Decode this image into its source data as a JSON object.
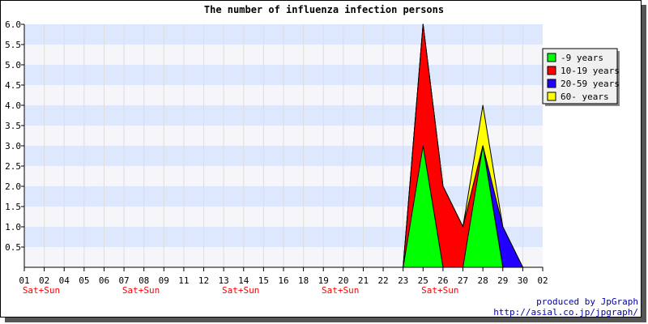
{
  "chart_data": {
    "type": "area",
    "title": "The number of influenza infection persons",
    "xlabel": "",
    "ylabel": "",
    "ylim": [
      0,
      6
    ],
    "y_ticks": [
      "0.5",
      "1.0",
      "1.5",
      "2.0",
      "2.5",
      "3.0",
      "3.5",
      "4.0",
      "4.5",
      "5.0",
      "5.5",
      "6.0"
    ],
    "categories": [
      "01",
      "02",
      "04",
      "05",
      "06",
      "07",
      "08",
      "09",
      "11",
      "12",
      "13",
      "14",
      "15",
      "16",
      "18",
      "19",
      "20",
      "21",
      "22",
      "23",
      "25",
      "26",
      "27",
      "28",
      "29",
      "30",
      "02"
    ],
    "weekend_labels": [
      {
        "category_index": 0,
        "text": "Sat+Sun"
      },
      {
        "category_index": 5,
        "text": "Sat+Sun"
      },
      {
        "category_index": 10,
        "text": "Sat+Sun"
      },
      {
        "category_index": 15,
        "text": "Sat+Sun"
      },
      {
        "category_index": 20,
        "text": "Sat+Sun"
      }
    ],
    "stacked": true,
    "series": [
      {
        "name": "-9 years",
        "color": "#00ff00",
        "values": [
          0,
          0,
          0,
          0,
          0,
          0,
          0,
          0,
          0,
          0,
          0,
          0,
          0,
          0,
          0,
          0,
          0,
          0,
          0,
          0,
          3,
          0,
          0,
          3,
          0,
          0,
          0
        ]
      },
      {
        "name": "10-19 years",
        "color": "#ff0000",
        "values": [
          0,
          0,
          0,
          0,
          0,
          0,
          0,
          0,
          0,
          0,
          0,
          0,
          0,
          0,
          0,
          0,
          0,
          0,
          0,
          0,
          3,
          2,
          1,
          0,
          0,
          0,
          0
        ]
      },
      {
        "name": "20-59 years",
        "color": "#2200ff",
        "values": [
          0,
          0,
          0,
          0,
          0,
          0,
          0,
          0,
          0,
          0,
          0,
          0,
          0,
          0,
          0,
          0,
          0,
          0,
          0,
          0,
          0,
          0,
          0,
          0,
          1,
          0,
          0
        ]
      },
      {
        "name": "60- years",
        "color": "#ffff00",
        "values": [
          0,
          0,
          0,
          0,
          0,
          0,
          0,
          0,
          0,
          0,
          0,
          0,
          0,
          0,
          0,
          0,
          0,
          0,
          0,
          0,
          0,
          0,
          0,
          1,
          0,
          0,
          0
        ]
      }
    ],
    "grid": true,
    "band_colors": [
      "#f5f5fa",
      "#dde8ff"
    ],
    "weekend_color": "#ff0000",
    "legend_position": "top-right"
  },
  "credit": {
    "line1": "produced by JpGraph",
    "line2": "http://asial.co.jp/jpgraph/"
  }
}
